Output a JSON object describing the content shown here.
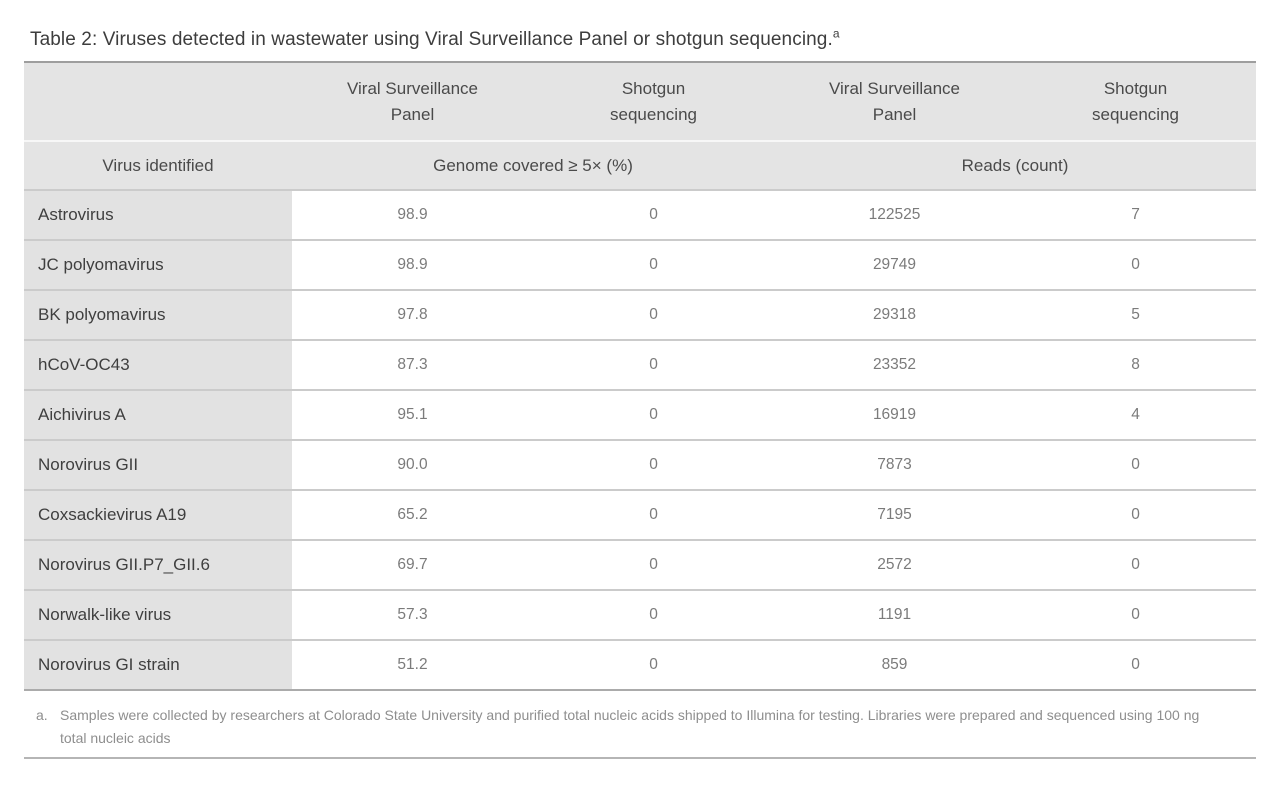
{
  "caption": {
    "text": "Table 2: Viruses detected in wastewater using Viral Surveillance Panel or shotgun sequencing.",
    "footnote_marker": "a"
  },
  "table": {
    "group_headers": [
      "Viral Surveillance\nPanel",
      "Shotgun\nsequencing",
      "Viral Surveillance\nPanel",
      "Shotgun\nsequencing"
    ],
    "sub_headers": {
      "virus_column": "Virus identified",
      "genome_group": "Genome covered ≥ 5× (%)",
      "reads_group": "Reads (count)"
    },
    "rows": [
      {
        "virus": "Astrovirus",
        "vsp_genome_pct": "98.9",
        "shotgun_genome_pct": "0",
        "vsp_reads": "122525",
        "shotgun_reads": "7"
      },
      {
        "virus": "JC polyomavirus",
        "vsp_genome_pct": "98.9",
        "shotgun_genome_pct": "0",
        "vsp_reads": "29749",
        "shotgun_reads": "0"
      },
      {
        "virus": "BK polyomavirus",
        "vsp_genome_pct": "97.8",
        "shotgun_genome_pct": "0",
        "vsp_reads": "29318",
        "shotgun_reads": "5"
      },
      {
        "virus": "hCoV-OC43",
        "vsp_genome_pct": "87.3",
        "shotgun_genome_pct": "0",
        "vsp_reads": "23352",
        "shotgun_reads": "8"
      },
      {
        "virus": "Aichivirus A",
        "vsp_genome_pct": "95.1",
        "shotgun_genome_pct": "0",
        "vsp_reads": "16919",
        "shotgun_reads": "4"
      },
      {
        "virus": "Norovirus GII",
        "vsp_genome_pct": "90.0",
        "shotgun_genome_pct": "0",
        "vsp_reads": "7873",
        "shotgun_reads": "0"
      },
      {
        "virus": "Coxsackievirus A19",
        "vsp_genome_pct": "65.2",
        "shotgun_genome_pct": "0",
        "vsp_reads": "7195",
        "shotgun_reads": "0"
      },
      {
        "virus": "Norovirus GII.P7_GII.6",
        "vsp_genome_pct": "69.7",
        "shotgun_genome_pct": "0",
        "vsp_reads": "2572",
        "shotgun_reads": "0"
      },
      {
        "virus": "Norwalk-like virus",
        "vsp_genome_pct": "57.3",
        "shotgun_genome_pct": "0",
        "vsp_reads": "1191",
        "shotgun_reads": "0"
      },
      {
        "virus": "Norovirus GI strain",
        "vsp_genome_pct": "51.2",
        "shotgun_genome_pct": "0",
        "vsp_reads": "859",
        "shotgun_reads": "0"
      }
    ]
  },
  "footnote": {
    "marker": "a.",
    "text": "Samples were collected by researchers at Colorado State University and purified total nucleic acids shipped to Illumina for testing. Libraries were prepared and sequenced using 100 ng total nucleic acids"
  },
  "colors": {
    "header_background": "#e4e4e4",
    "virus_column_background": "#e2e2e2",
    "body_text": "#3f3f3f",
    "value_text": "#7b7b7b",
    "footnote_text": "#8e8e8e",
    "rule_dark": "#9e9e9e",
    "rule_light": "#cbcbcb"
  }
}
